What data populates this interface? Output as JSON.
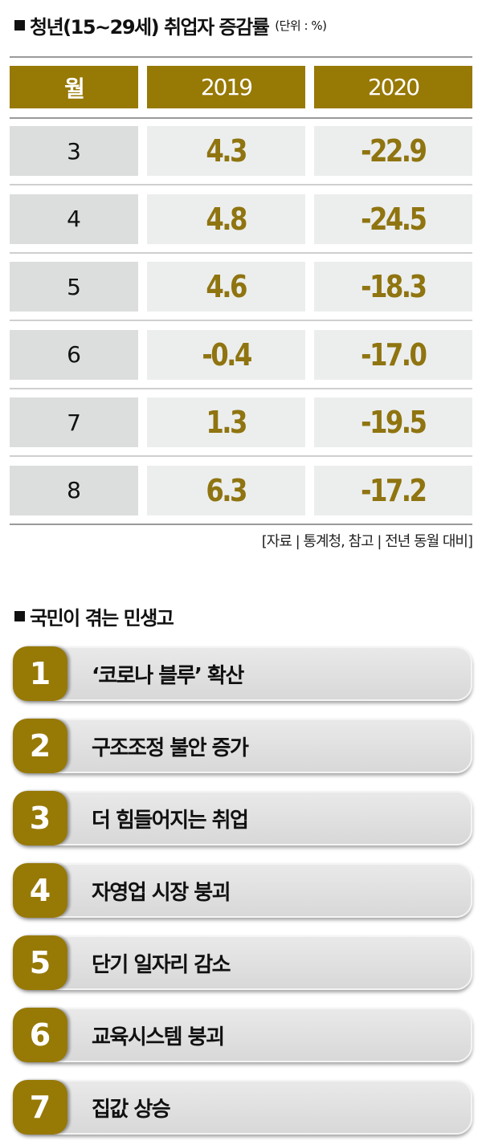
{
  "table_title": "청년(15~29세) 취업자 증감률",
  "unit": "(단위 : %)",
  "chart_data": {
    "type": "table",
    "title": "청년(15~29세) 취업자 증감률",
    "unit": "(단위 : %)",
    "columns": [
      "월",
      "2019",
      "2020"
    ],
    "rows": [
      [
        "3",
        "4.3",
        "-22.9"
      ],
      [
        "4",
        "4.8",
        "-24.5"
      ],
      [
        "5",
        "4.6",
        "-18.3"
      ],
      [
        "6",
        "-0.4",
        "-17.0"
      ],
      [
        "7",
        "1.3",
        "-19.5"
      ],
      [
        "8",
        "6.3",
        "-17.2"
      ]
    ]
  },
  "source": "[자료 | 통계청, 참고 | 전년 동월 대비]",
  "list_title": "국민이 겪는 민생고",
  "list": [
    {
      "num": "1",
      "text": "‘코로나 블루’ 확산"
    },
    {
      "num": "2",
      "text": "구조조정 불안 증가"
    },
    {
      "num": "3",
      "text": "더 힘들어지는 취업"
    },
    {
      "num": "4",
      "text": "자영업 시장 붕괴"
    },
    {
      "num": "5",
      "text": "단기 일자리 감소"
    },
    {
      "num": "6",
      "text": "교육시스템 붕괴"
    },
    {
      "num": "7",
      "text": "집값 상승"
    }
  ],
  "colors": {
    "accent": "#977906",
    "value_text": "#8f7410",
    "cell_month": "#dcdedd",
    "cell_value": "#eceeed"
  }
}
